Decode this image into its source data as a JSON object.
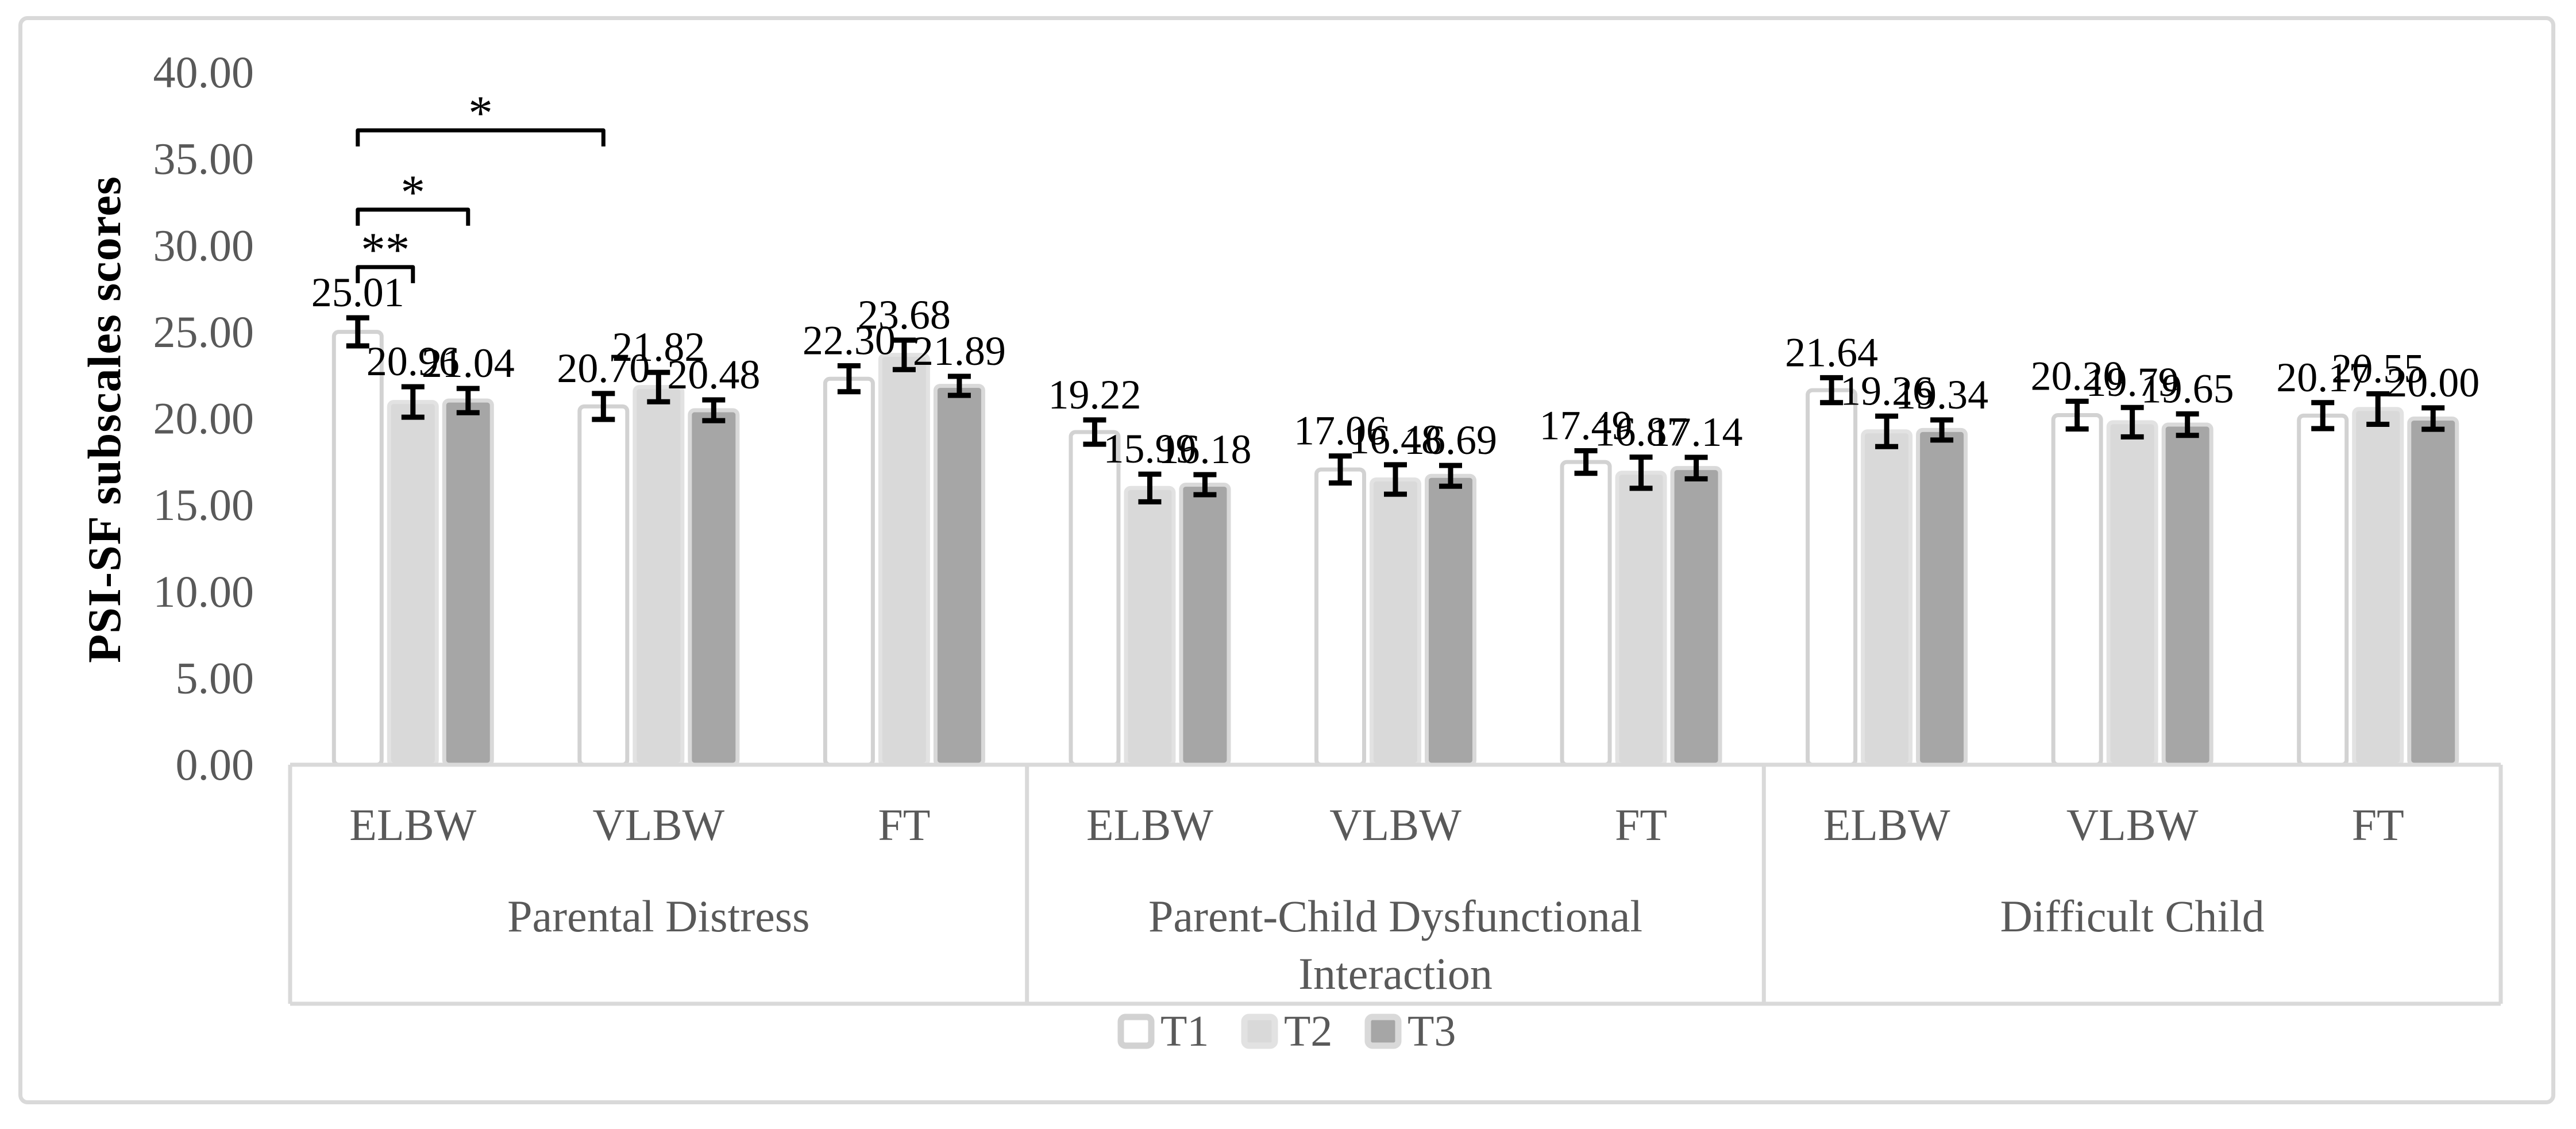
{
  "figure": {
    "frame_color": "#d9d9d9",
    "background": "#ffffff"
  },
  "chart_data": {
    "type": "bar",
    "title": "",
    "ylabel": "PSI-SF subscales scores",
    "xlabel": "",
    "ylim": [
      0,
      40
    ],
    "ytick_step": 5,
    "ytick_labels": [
      "0.00",
      "5.00",
      "10.00",
      "15.00",
      "20.00",
      "25.00",
      "30.00",
      "35.00",
      "40.00"
    ],
    "grid": false,
    "legend_position": "bottom-center",
    "axis_color": "#d9d9d9",
    "tick_label_color": "#595959",
    "category_label_color": "#595959",
    "data_label_color": "#000000",
    "error_bar_color": "#000000",
    "groups": [
      {
        "label": "Parental Distress",
        "label_lines": [
          "Parental Distress"
        ],
        "subgroups": [
          "ELBW",
          "VLBW",
          "FT"
        ]
      },
      {
        "label": "Parent-Child Dysfunctional Interaction",
        "label_lines": [
          "Parent-Child Dysfunctional",
          "Interaction"
        ],
        "subgroups": [
          "ELBW",
          "VLBW",
          "FT"
        ]
      },
      {
        "label": "Difficult Child",
        "label_lines": [
          "Difficult Child"
        ],
        "subgroups": [
          "ELBW",
          "VLBW",
          "FT"
        ]
      }
    ],
    "slot_order": [
      "Parental Distress/ELBW",
      "Parental Distress/VLBW",
      "Parental Distress/FT",
      "Parent-Child Dysfunctional Interaction/ELBW",
      "Parent-Child Dysfunctional Interaction/VLBW",
      "Parent-Child Dysfunctional Interaction/FT",
      "Difficult Child/ELBW",
      "Difficult Child/VLBW",
      "Difficult Child/FT"
    ],
    "series": [
      {
        "name": "T1",
        "fill": "#ffffff",
        "border": "#d2d2d2",
        "values": [
          25.01,
          20.7,
          22.3,
          19.22,
          17.06,
          17.49,
          21.64,
          20.2,
          20.17
        ],
        "errors": [
          0.81,
          0.75,
          0.75,
          0.7,
          0.78,
          0.65,
          0.72,
          0.8,
          0.75
        ]
      },
      {
        "name": "T2",
        "fill": "#d9d9d9",
        "border": "#e2e2e2",
        "values": [
          20.96,
          21.82,
          23.68,
          15.99,
          16.48,
          16.87,
          19.26,
          19.79,
          20.55
        ],
        "errors": [
          0.88,
          0.85,
          0.85,
          0.8,
          0.85,
          0.9,
          0.88,
          0.85,
          0.88
        ]
      },
      {
        "name": "T3",
        "fill": "#a6a6a6",
        "border": "#d9d9d9",
        "values": [
          21.04,
          20.48,
          21.89,
          16.18,
          16.69,
          17.14,
          19.34,
          19.65,
          20.0
        ],
        "errors": [
          0.7,
          0.6,
          0.55,
          0.58,
          0.6,
          0.62,
          0.58,
          0.62,
          0.62
        ]
      }
    ],
    "significance": [
      {
        "from": {
          "slot": 0,
          "series": 0
        },
        "to": {
          "slot": 0,
          "series": 1
        },
        "stars": "**",
        "y": 28.75
      },
      {
        "from": {
          "slot": 0,
          "series": 0
        },
        "to": {
          "slot": 0,
          "series": 2
        },
        "stars": "*",
        "y": 32.07
      },
      {
        "from": {
          "slot": 0,
          "series": 0
        },
        "to": {
          "slot": 1,
          "series": 0
        },
        "stars": "*",
        "y": 36.65
      }
    ],
    "legend": [
      "T1",
      "T2",
      "T3"
    ]
  }
}
